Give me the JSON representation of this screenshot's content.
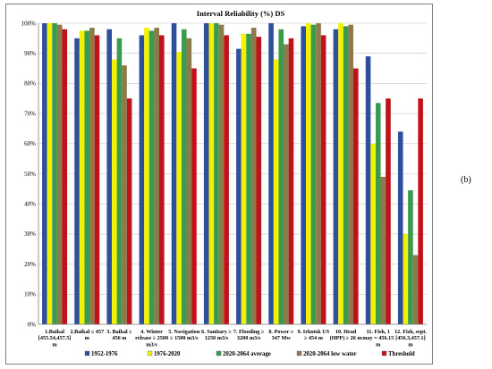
{
  "panel_label": "(b)",
  "chart_data": {
    "type": "bar",
    "title": "Interval Reliability (%) DS",
    "xlabel": "",
    "ylabel": "",
    "ylim": [
      0,
      100
    ],
    "y_tick_step": 10,
    "y_tick_labels": [
      "0%",
      "10%",
      "20%",
      "30%",
      "40%",
      "50%",
      "60%",
      "70%",
      "80%",
      "90%",
      "100%"
    ],
    "grid": true,
    "legend_position": "bottom",
    "categories": [
      "1.Baikal [455.54,457.5] m",
      "2.Baikal ≤ 457 m",
      "3. Baikal ≥ 456 m",
      "4. Winter release ≥ 2500 m3/s",
      "5. Navigation ≥ 1500 m3/s",
      "6. Sanitary ≥ 1250 m3/s",
      "7. Flooding ≥ 3200 m3/s",
      "8. Power ≥ 347 Mw",
      "9. Irkutsk US ≥ 454 m",
      "10. Head (HPP) ≥ 26 m",
      "11. Fish, 1 may = 456.15 m",
      "12. Fish, sept. [456.3,457.1] m"
    ],
    "category_lines": [
      [
        "1.Baikal",
        "[455.54,457.5]",
        "m"
      ],
      [
        "2.Baikal ≤ 457",
        "m"
      ],
      [
        "3. Baikal ≥",
        "456 m"
      ],
      [
        "4. Winter",
        "release ≥ 2500",
        "m3/s"
      ],
      [
        "5. Navigation",
        "≥ 1500 m3/s"
      ],
      [
        "6. Sanitary ≥",
        "1250 m3/s"
      ],
      [
        "7. Flooding ≥",
        "3200 m3/s"
      ],
      [
        "8. Power ≥",
        "347 Mw"
      ],
      [
        "9. Irkutsk US",
        "≥ 454 m"
      ],
      [
        "10. Head",
        "(HPP) ≥ 26 m"
      ],
      [
        "11. Fish, 1",
        "may = 456.15",
        "m"
      ],
      [
        "12. Fish, sept.",
        "[456.3,457.1]",
        "m"
      ]
    ],
    "series": [
      {
        "name": "1952-1976",
        "color": "#2e4f9e",
        "values": [
          100,
          95,
          98,
          96,
          100,
          100,
          91.5,
          100,
          99,
          98,
          89,
          64
        ]
      },
      {
        "name": "1976-2020",
        "color": "#f2f200",
        "values": [
          100,
          97.5,
          88,
          98.5,
          90.5,
          100,
          96.5,
          88,
          100,
          100,
          60,
          30
        ]
      },
      {
        "name": "2020-2064  average",
        "color": "#3a9a4e",
        "values": [
          100,
          97.5,
          95,
          97.5,
          98,
          100,
          96.5,
          98,
          99.5,
          99,
          73.5,
          44.5
        ]
      },
      {
        "name": "2020-2064  low water",
        "color": "#8c7a4a",
        "values": [
          99.5,
          98.5,
          86,
          98.5,
          95,
          99.5,
          98.5,
          93,
          100,
          99.5,
          49,
          23
        ]
      },
      {
        "name": "Threshold",
        "color": "#c0121a",
        "values": [
          98,
          96,
          75,
          96,
          85,
          96,
          95.5,
          95,
          96,
          85,
          75,
          75
        ]
      }
    ]
  }
}
